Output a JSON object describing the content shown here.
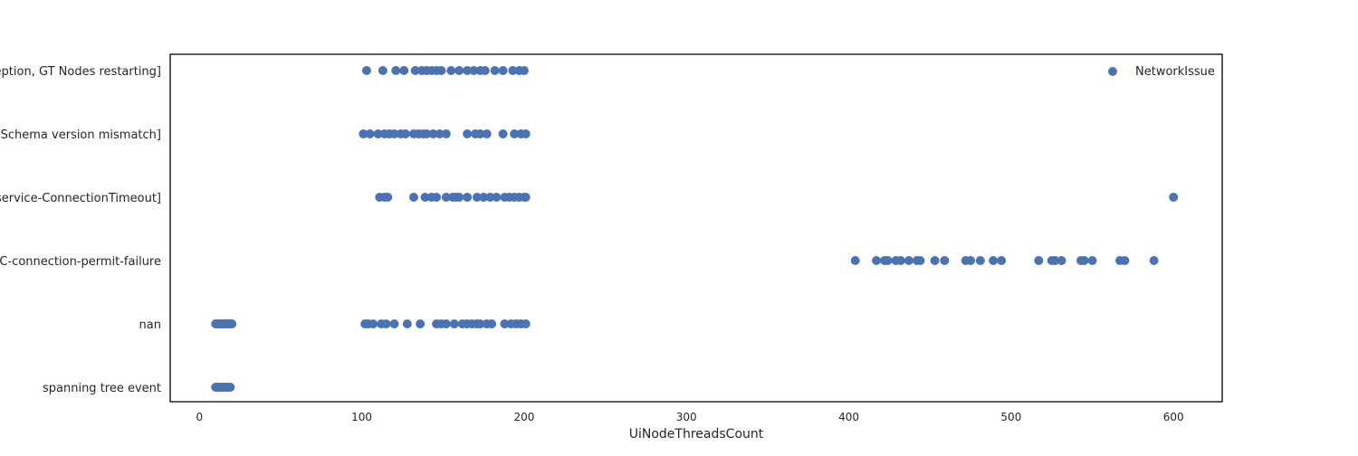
{
  "chart_data": {
    "type": "scatter",
    "title": "",
    "xlabel": "UiNodeThreadsCount",
    "ylabel": "",
    "xlim": [
      -18,
      630
    ],
    "x_ticks": [
      0,
      100,
      200,
      300,
      400,
      500,
      600
    ],
    "categories": [
      "ception, GT Nodes restarting]",
      "s Schema version mismatch]",
      "pservice-ConnectionTimeout]",
      "BC-connection-permit-failure",
      "nan",
      "spanning tree event"
    ],
    "grid": false,
    "legend_position": "top-right",
    "series": [
      {
        "name": "NetworkIssue",
        "color": "#4c72b0",
        "points": [
          {
            "x": 103,
            "y": "ception, GT Nodes restarting]"
          },
          {
            "x": 113,
            "y": "ception, GT Nodes restarting]"
          },
          {
            "x": 121,
            "y": "ception, GT Nodes restarting]"
          },
          {
            "x": 126,
            "y": "ception, GT Nodes restarting]"
          },
          {
            "x": 133,
            "y": "ception, GT Nodes restarting]"
          },
          {
            "x": 137,
            "y": "ception, GT Nodes restarting]"
          },
          {
            "x": 140,
            "y": "ception, GT Nodes restarting]"
          },
          {
            "x": 143,
            "y": "ception, GT Nodes restarting]"
          },
          {
            "x": 146,
            "y": "ception, GT Nodes restarting]"
          },
          {
            "x": 149,
            "y": "ception, GT Nodes restarting]"
          },
          {
            "x": 155,
            "y": "ception, GT Nodes restarting]"
          },
          {
            "x": 160,
            "y": "ception, GT Nodes restarting]"
          },
          {
            "x": 165,
            "y": "ception, GT Nodes restarting]"
          },
          {
            "x": 169,
            "y": "ception, GT Nodes restarting]"
          },
          {
            "x": 173,
            "y": "ception, GT Nodes restarting]"
          },
          {
            "x": 176,
            "y": "ception, GT Nodes restarting]"
          },
          {
            "x": 182,
            "y": "ception, GT Nodes restarting]"
          },
          {
            "x": 187,
            "y": "ception, GT Nodes restarting]"
          },
          {
            "x": 193,
            "y": "ception, GT Nodes restarting]"
          },
          {
            "x": 197,
            "y": "ception, GT Nodes restarting]"
          },
          {
            "x": 200,
            "y": "ception, GT Nodes restarting]"
          },
          {
            "x": 101,
            "y": "s Schema version mismatch]"
          },
          {
            "x": 105,
            "y": "s Schema version mismatch]"
          },
          {
            "x": 110,
            "y": "s Schema version mismatch]"
          },
          {
            "x": 114,
            "y": "s Schema version mismatch]"
          },
          {
            "x": 117,
            "y": "s Schema version mismatch]"
          },
          {
            "x": 120,
            "y": "s Schema version mismatch]"
          },
          {
            "x": 124,
            "y": "s Schema version mismatch]"
          },
          {
            "x": 127,
            "y": "s Schema version mismatch]"
          },
          {
            "x": 132,
            "y": "s Schema version mismatch]"
          },
          {
            "x": 135,
            "y": "s Schema version mismatch]"
          },
          {
            "x": 138,
            "y": "s Schema version mismatch]"
          },
          {
            "x": 140,
            "y": "s Schema version mismatch]"
          },
          {
            "x": 144,
            "y": "s Schema version mismatch]"
          },
          {
            "x": 148,
            "y": "s Schema version mismatch]"
          },
          {
            "x": 152,
            "y": "s Schema version mismatch]"
          },
          {
            "x": 165,
            "y": "s Schema version mismatch]"
          },
          {
            "x": 170,
            "y": "s Schema version mismatch]"
          },
          {
            "x": 173,
            "y": "s Schema version mismatch]"
          },
          {
            "x": 177,
            "y": "s Schema version mismatch]"
          },
          {
            "x": 187,
            "y": "s Schema version mismatch]"
          },
          {
            "x": 194,
            "y": "s Schema version mismatch]"
          },
          {
            "x": 198,
            "y": "s Schema version mismatch]"
          },
          {
            "x": 201,
            "y": "s Schema version mismatch]"
          },
          {
            "x": 111,
            "y": "pservice-ConnectionTimeout]"
          },
          {
            "x": 114,
            "y": "pservice-ConnectionTimeout]"
          },
          {
            "x": 116,
            "y": "pservice-ConnectionTimeout]"
          },
          {
            "x": 132,
            "y": "pservice-ConnectionTimeout]"
          },
          {
            "x": 139,
            "y": "pservice-ConnectionTimeout]"
          },
          {
            "x": 143,
            "y": "pservice-ConnectionTimeout]"
          },
          {
            "x": 146,
            "y": "pservice-ConnectionTimeout]"
          },
          {
            "x": 152,
            "y": "pservice-ConnectionTimeout]"
          },
          {
            "x": 156,
            "y": "pservice-ConnectionTimeout]"
          },
          {
            "x": 158,
            "y": "pservice-ConnectionTimeout]"
          },
          {
            "x": 160,
            "y": "pservice-ConnectionTimeout]"
          },
          {
            "x": 165,
            "y": "pservice-ConnectionTimeout]"
          },
          {
            "x": 171,
            "y": "pservice-ConnectionTimeout]"
          },
          {
            "x": 175,
            "y": "pservice-ConnectionTimeout]"
          },
          {
            "x": 179,
            "y": "pservice-ConnectionTimeout]"
          },
          {
            "x": 183,
            "y": "pservice-ConnectionTimeout]"
          },
          {
            "x": 188,
            "y": "pservice-ConnectionTimeout]"
          },
          {
            "x": 191,
            "y": "pservice-ConnectionTimeout]"
          },
          {
            "x": 194,
            "y": "pservice-ConnectionTimeout]"
          },
          {
            "x": 197,
            "y": "pservice-ConnectionTimeout]"
          },
          {
            "x": 200,
            "y": "pservice-ConnectionTimeout]"
          },
          {
            "x": 201,
            "y": "pservice-ConnectionTimeout]"
          },
          {
            "x": 600,
            "y": "pservice-ConnectionTimeout]"
          },
          {
            "x": 404,
            "y": "BC-connection-permit-failure"
          },
          {
            "x": 417,
            "y": "BC-connection-permit-failure"
          },
          {
            "x": 422,
            "y": "BC-connection-permit-failure"
          },
          {
            "x": 424,
            "y": "BC-connection-permit-failure"
          },
          {
            "x": 429,
            "y": "BC-connection-permit-failure"
          },
          {
            "x": 432,
            "y": "BC-connection-permit-failure"
          },
          {
            "x": 437,
            "y": "BC-connection-permit-failure"
          },
          {
            "x": 442,
            "y": "BC-connection-permit-failure"
          },
          {
            "x": 444,
            "y": "BC-connection-permit-failure"
          },
          {
            "x": 453,
            "y": "BC-connection-permit-failure"
          },
          {
            "x": 459,
            "y": "BC-connection-permit-failure"
          },
          {
            "x": 472,
            "y": "BC-connection-permit-failure"
          },
          {
            "x": 475,
            "y": "BC-connection-permit-failure"
          },
          {
            "x": 481,
            "y": "BC-connection-permit-failure"
          },
          {
            "x": 489,
            "y": "BC-connection-permit-failure"
          },
          {
            "x": 494,
            "y": "BC-connection-permit-failure"
          },
          {
            "x": 517,
            "y": "BC-connection-permit-failure"
          },
          {
            "x": 525,
            "y": "BC-connection-permit-failure"
          },
          {
            "x": 527,
            "y": "BC-connection-permit-failure"
          },
          {
            "x": 531,
            "y": "BC-connection-permit-failure"
          },
          {
            "x": 543,
            "y": "BC-connection-permit-failure"
          },
          {
            "x": 545,
            "y": "BC-connection-permit-failure"
          },
          {
            "x": 550,
            "y": "BC-connection-permit-failure"
          },
          {
            "x": 567,
            "y": "BC-connection-permit-failure"
          },
          {
            "x": 570,
            "y": "BC-connection-permit-failure"
          },
          {
            "x": 588,
            "y": "BC-connection-permit-failure"
          },
          {
            "x": 10,
            "y": "nan"
          },
          {
            "x": 11,
            "y": "nan"
          },
          {
            "x": 12,
            "y": "nan"
          },
          {
            "x": 13,
            "y": "nan"
          },
          {
            "x": 14,
            "y": "nan"
          },
          {
            "x": 15,
            "y": "nan"
          },
          {
            "x": 16,
            "y": "nan"
          },
          {
            "x": 17,
            "y": "nan"
          },
          {
            "x": 18,
            "y": "nan"
          },
          {
            "x": 19,
            "y": "nan"
          },
          {
            "x": 20,
            "y": "nan"
          },
          {
            "x": 102,
            "y": "nan"
          },
          {
            "x": 104,
            "y": "nan"
          },
          {
            "x": 107,
            "y": "nan"
          },
          {
            "x": 112,
            "y": "nan"
          },
          {
            "x": 115,
            "y": "nan"
          },
          {
            "x": 120,
            "y": "nan"
          },
          {
            "x": 128,
            "y": "nan"
          },
          {
            "x": 136,
            "y": "nan"
          },
          {
            "x": 146,
            "y": "nan"
          },
          {
            "x": 149,
            "y": "nan"
          },
          {
            "x": 152,
            "y": "nan"
          },
          {
            "x": 157,
            "y": "nan"
          },
          {
            "x": 162,
            "y": "nan"
          },
          {
            "x": 165,
            "y": "nan"
          },
          {
            "x": 168,
            "y": "nan"
          },
          {
            "x": 171,
            "y": "nan"
          },
          {
            "x": 173,
            "y": "nan"
          },
          {
            "x": 177,
            "y": "nan"
          },
          {
            "x": 180,
            "y": "nan"
          },
          {
            "x": 188,
            "y": "nan"
          },
          {
            "x": 192,
            "y": "nan"
          },
          {
            "x": 195,
            "y": "nan"
          },
          {
            "x": 198,
            "y": "nan"
          },
          {
            "x": 201,
            "y": "nan"
          },
          {
            "x": 10,
            "y": "spanning tree event"
          },
          {
            "x": 11,
            "y": "spanning tree event"
          },
          {
            "x": 12,
            "y": "spanning tree event"
          },
          {
            "x": 13,
            "y": "spanning tree event"
          },
          {
            "x": 14,
            "y": "spanning tree event"
          },
          {
            "x": 15,
            "y": "spanning tree event"
          },
          {
            "x": 16,
            "y": "spanning tree event"
          },
          {
            "x": 17,
            "y": "spanning tree event"
          },
          {
            "x": 18,
            "y": "spanning tree event"
          },
          {
            "x": 19,
            "y": "spanning tree event"
          }
        ]
      }
    ]
  }
}
